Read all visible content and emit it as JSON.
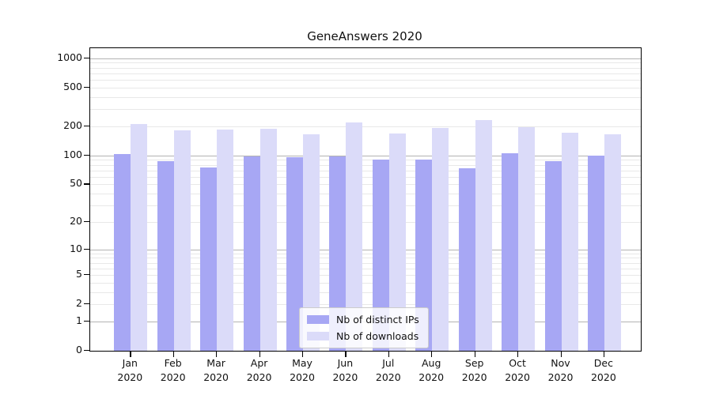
{
  "title": "GeneAnswers 2020",
  "chart_data": {
    "type": "bar",
    "title": "GeneAnswers 2020",
    "categories": [
      "Jan",
      "Feb",
      "Mar",
      "Apr",
      "May",
      "Jun",
      "Jul",
      "Aug",
      "Sep",
      "Oct",
      "Nov",
      "Dec"
    ],
    "category_year": "2020",
    "series": [
      {
        "name": "Nb of distinct IPs",
        "color": "#a7a7f4",
        "values": [
          103,
          87,
          75,
          98,
          95,
          97,
          91,
          90,
          73,
          105,
          87,
          99
        ]
      },
      {
        "name": "Nb of downloads",
        "color": "#dbdbf9",
        "values": [
          213,
          180,
          184,
          187,
          166,
          220,
          169,
          193,
          233,
          197,
          173,
          166
        ]
      }
    ],
    "y_ticks": [
      0,
      1,
      2,
      5,
      10,
      20,
      50,
      100,
      200,
      500,
      1000
    ],
    "y_scale": "log10(value+1)",
    "y_axis_top_value": 1270,
    "ylim": [
      0,
      1270
    ],
    "grid": "horizontal",
    "grid_major_color": "#b3b3b3",
    "grid_minor_color": "#e8e8e8",
    "legend_position": "lower center",
    "xlabel": "",
    "ylabel": ""
  }
}
